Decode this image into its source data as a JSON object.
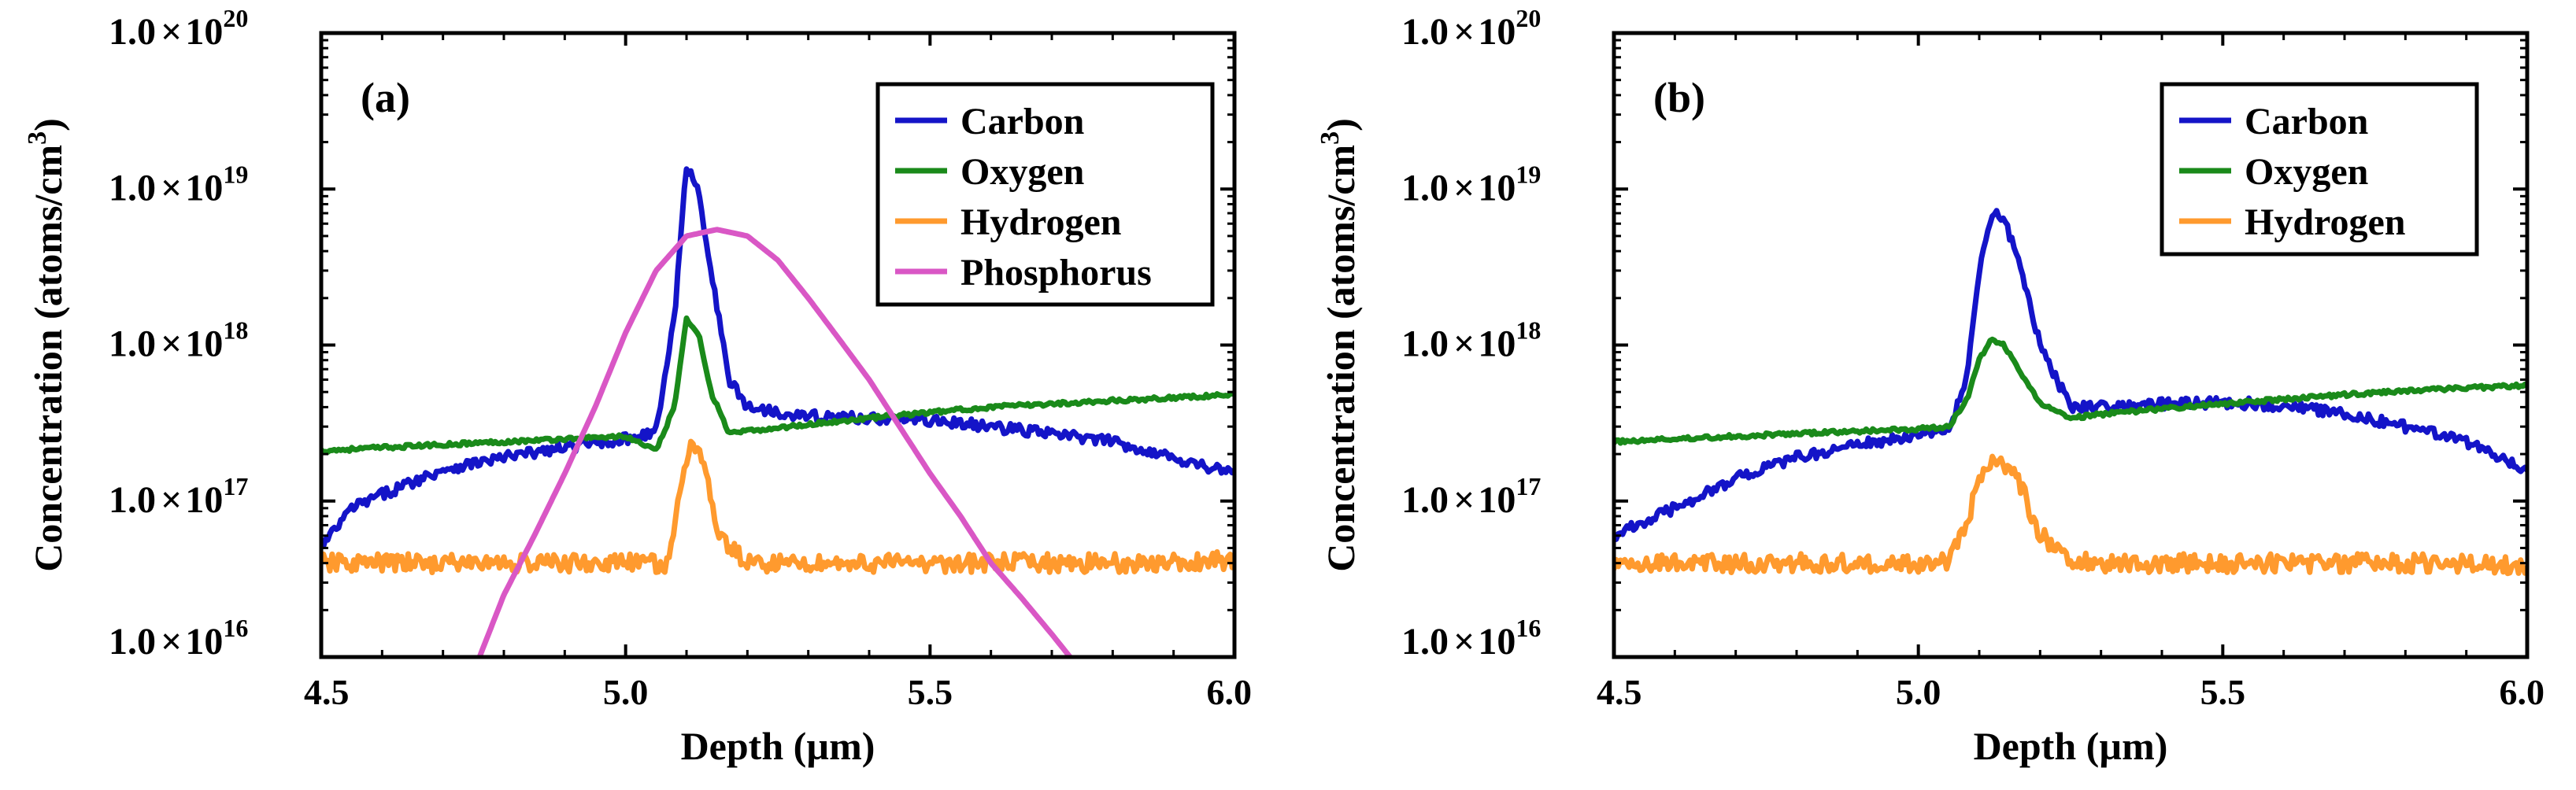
{
  "colors": {
    "carbon": "#1414c8",
    "oxygen": "#1a8a1a",
    "hydrogen": "#ff9a2e",
    "phosphorus": "#d957c5",
    "axis": "#000000"
  },
  "chart_data": [
    {
      "type": "line",
      "panel_label": "(a)",
      "xlabel": "Depth (µm)",
      "ylabel_main": "Concentration (atoms/cm",
      "ylabel_sup": "3",
      "ylabel_close": ")",
      "yscale": "log",
      "xlim": [
        4.5,
        6.0
      ],
      "ylim": [
        1e+16,
        1e+20
      ],
      "x_ticks": [
        4.5,
        5.0,
        5.5,
        6.0
      ],
      "x_tick_labels": [
        "4.5",
        "5.0",
        "5.5",
        "6.0"
      ],
      "y_ticks": [
        {
          "mantissa": "1.0",
          "times": "×",
          "base": "10",
          "exp": "16"
        },
        {
          "mantissa": "1.0",
          "times": "×",
          "base": "10",
          "exp": "17"
        },
        {
          "mantissa": "1.0",
          "times": "×",
          "base": "10",
          "exp": "18"
        },
        {
          "mantissa": "1.0",
          "times": "×",
          "base": "10",
          "exp": "19"
        },
        {
          "mantissa": "1.0",
          "times": "×",
          "base": "10",
          "exp": "20"
        }
      ],
      "legend": {
        "position": "top-right",
        "entries": [
          "Carbon",
          "Oxygen",
          "Hydrogen",
          "Phosphorus"
        ]
      },
      "series": [
        {
          "name": "Carbon",
          "color_key": "carbon",
          "x": [
            4.5,
            4.55,
            4.6,
            4.7,
            4.8,
            4.9,
            5.0,
            5.05,
            5.08,
            5.1,
            5.12,
            5.14,
            5.17,
            5.2,
            5.3,
            5.4,
            5.5,
            5.6,
            5.7,
            5.8,
            5.9,
            6.0
          ],
          "y": [
            5e+16,
            9e+16,
            1.1e+17,
            1.6e+17,
            1.9e+17,
            2.2e+17,
            2.5e+17,
            2.8e+17,
            1.5e+18,
            1.4e+19,
            1e+19,
            3e+18,
            6e+17,
            4e+17,
            3.5e+17,
            3.4e+17,
            3.3e+17,
            3e+17,
            2.7e+17,
            2.4e+17,
            1.9e+17,
            1.5e+17
          ]
        },
        {
          "name": "Oxygen",
          "color_key": "oxygen",
          "x": [
            4.5,
            4.6,
            4.7,
            4.8,
            4.9,
            5.0,
            5.05,
            5.08,
            5.1,
            5.12,
            5.14,
            5.17,
            5.2,
            5.3,
            5.4,
            5.5,
            5.6,
            5.7,
            5.8,
            5.9,
            6.0
          ],
          "y": [
            2.1e+17,
            2.2e+17,
            2.3e+17,
            2.4e+17,
            2.5e+17,
            2.6e+17,
            2.1e+17,
            4e+17,
            1.45e+18,
            1.2e+18,
            5e+17,
            2.7e+17,
            2.8e+17,
            3.1e+17,
            3.4e+17,
            3.7e+17,
            4e+17,
            4.2e+17,
            4.4e+17,
            4.6e+17,
            4.8e+17
          ]
        },
        {
          "name": "Hydrogen",
          "color_key": "hydrogen",
          "x": [
            4.5,
            4.6,
            4.7,
            4.8,
            4.9,
            5.0,
            5.07,
            5.09,
            5.11,
            5.13,
            5.15,
            5.2,
            5.3,
            5.4,
            5.5,
            5.6,
            5.7,
            5.8,
            5.9,
            6.0
          ],
          "y": [
            4e+16,
            4e+16,
            4e+16,
            4e+16,
            4e+16,
            4e+16,
            4e+16,
            1.1e+17,
            2.5e+17,
            1.8e+17,
            6e+16,
            4e+16,
            4e+16,
            4e+16,
            4e+16,
            4e+16,
            4e+16,
            4e+16,
            4e+16,
            4.2e+16
          ]
        },
        {
          "name": "Phosphorus",
          "color_key": "phosphorus",
          "x": [
            4.76,
            4.8,
            4.85,
            4.9,
            4.95,
            5.0,
            5.05,
            5.1,
            5.15,
            5.2,
            5.25,
            5.3,
            5.35,
            5.4,
            5.45,
            5.5,
            5.55,
            5.6,
            5.65,
            5.7,
            5.73
          ],
          "y": [
            1e+16,
            2.5e+16,
            6e+16,
            1.5e+17,
            4e+17,
            1.2e+18,
            3e+18,
            5e+18,
            5.5e+18,
            5e+18,
            3.5e+18,
            2e+18,
            1.1e+18,
            6e+17,
            3e+17,
            1.5e+17,
            8e+16,
            4e+16,
            2.4e+16,
            1.4e+16,
            1e+16
          ]
        }
      ]
    },
    {
      "type": "line",
      "panel_label": "(b)",
      "xlabel": "Depth (µm)",
      "ylabel_main": "Concentration (atoms/cm",
      "ylabel_sup": "3",
      "ylabel_close": ")",
      "yscale": "log",
      "xlim": [
        4.5,
        6.0
      ],
      "ylim": [
        1e+16,
        1e+20
      ],
      "x_ticks": [
        4.5,
        5.0,
        5.5,
        6.0
      ],
      "x_tick_labels": [
        "4.5",
        "5.0",
        "5.5",
        "6.0"
      ],
      "y_ticks": [
        {
          "mantissa": "1.0",
          "times": "×",
          "base": "10",
          "exp": "16"
        },
        {
          "mantissa": "1.0",
          "times": "×",
          "base": "10",
          "exp": "17"
        },
        {
          "mantissa": "1.0",
          "times": "×",
          "base": "10",
          "exp": "18"
        },
        {
          "mantissa": "1.0",
          "times": "×",
          "base": "10",
          "exp": "19"
        },
        {
          "mantissa": "1.0",
          "times": "×",
          "base": "10",
          "exp": "20"
        }
      ],
      "legend": {
        "position": "top-right",
        "entries": [
          "Carbon",
          "Oxygen",
          "Hydrogen"
        ]
      },
      "series": [
        {
          "name": "Carbon",
          "color_key": "carbon",
          "x": [
            4.5,
            4.6,
            4.7,
            4.8,
            4.9,
            5.0,
            5.05,
            5.08,
            5.1,
            5.12,
            5.14,
            5.17,
            5.2,
            5.25,
            5.3,
            5.4,
            5.5,
            5.6,
            5.7,
            5.8,
            5.9,
            6.0
          ],
          "y": [
            6e+16,
            9e+16,
            1.4e+17,
            1.9e+17,
            2.3e+17,
            2.6e+17,
            2.9e+17,
            6e+17,
            3e+18,
            7e+18,
            6.5e+18,
            3e+18,
            1e+18,
            4e+17,
            4.1e+17,
            4.2e+17,
            4.3e+17,
            4.1e+17,
            3.6e+17,
            3e+17,
            2.4e+17,
            1.6e+17
          ]
        },
        {
          "name": "Oxygen",
          "color_key": "oxygen",
          "x": [
            4.5,
            4.6,
            4.7,
            4.8,
            4.9,
            5.0,
            5.05,
            5.08,
            5.1,
            5.12,
            5.14,
            5.17,
            5.2,
            5.25,
            5.3,
            5.4,
            5.5,
            5.6,
            5.7,
            5.8,
            5.9,
            6.0
          ],
          "y": [
            2.4e+17,
            2.5e+17,
            2.6e+17,
            2.7e+17,
            2.8e+17,
            2.9e+17,
            3e+17,
            4.5e+17,
            8e+17,
            1.1e+18,
            1e+18,
            6.5e+17,
            4.2e+17,
            3.4e+17,
            3.6e+17,
            3.9e+17,
            4.2e+17,
            4.5e+17,
            4.8e+17,
            5.1e+17,
            5.3e+17,
            5.5e+17
          ]
        },
        {
          "name": "Hydrogen",
          "color_key": "hydrogen",
          "x": [
            4.5,
            4.6,
            4.7,
            4.8,
            4.9,
            5.0,
            5.05,
            5.08,
            5.1,
            5.12,
            5.14,
            5.17,
            5.2,
            5.25,
            5.3,
            5.4,
            5.5,
            5.6,
            5.7,
            5.8,
            5.9,
            6.0
          ],
          "y": [
            4e+16,
            4e+16,
            4e+16,
            4e+16,
            4e+16,
            4e+16,
            4.2e+16,
            7e+16,
            1.4e+17,
            1.9e+17,
            1.8e+17,
            1.2e+17,
            6e+16,
            4.3e+16,
            4e+16,
            4e+16,
            4e+16,
            4e+16,
            4e+16,
            4e+16,
            4e+16,
            3.8e+16
          ]
        }
      ]
    }
  ]
}
